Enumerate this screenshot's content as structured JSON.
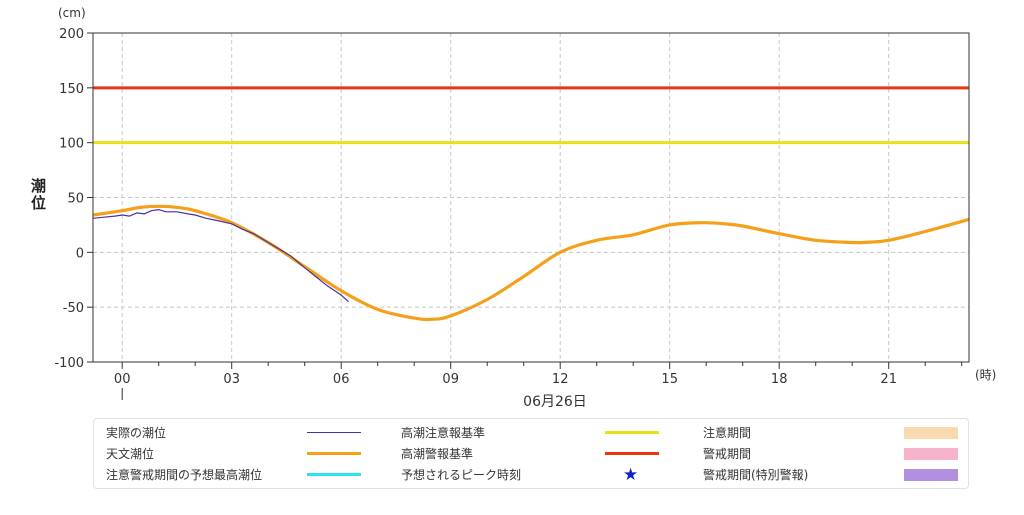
{
  "chart_data": {
    "type": "line",
    "y_unit": "(cm)",
    "x_unit": "(時)",
    "ylabel": "潮位",
    "xlabel": "06月26日",
    "ylim": [
      -100,
      200
    ],
    "yticks": [
      -100,
      -50,
      0,
      50,
      100,
      150,
      200
    ],
    "xlim": [
      -0.8,
      23.2
    ],
    "xticks": [
      0,
      3,
      6,
      9,
      12,
      15,
      18,
      21
    ],
    "xtick_labels": [
      "00",
      "03",
      "06",
      "09",
      "12",
      "15",
      "18",
      "21"
    ],
    "grid": true,
    "series": [
      {
        "name": "天文潮位",
        "color": "#f5a01a",
        "x": [
          -0.8,
          0,
          0.5,
          1.0,
          1.5,
          2.0,
          3.0,
          4.0,
          5.0,
          6.0,
          7.0,
          8.0,
          8.5,
          9.0,
          10.0,
          11.0,
          12.0,
          13.0,
          14.0,
          15.0,
          15.9,
          16.5,
          17.0,
          18.0,
          19.0,
          20.0,
          20.3,
          21.0,
          22.0,
          23.2
        ],
        "values": [
          34,
          38,
          41,
          42,
          41,
          38,
          27,
          9,
          -13,
          -35,
          -52,
          -60,
          -61,
          -58,
          -43,
          -22,
          0,
          11,
          16,
          25,
          27,
          26,
          24,
          17,
          11,
          9,
          9,
          11,
          19,
          30
        ]
      },
      {
        "name": "実際の潮位",
        "color": "#4b2fa3",
        "x": [
          -0.8,
          -0.5,
          -0.2,
          0,
          0.2,
          0.4,
          0.6,
          0.8,
          1.0,
          1.2,
          1.5,
          1.8,
          2.0,
          2.3,
          2.6,
          3.0,
          3.3,
          3.6,
          4.0,
          4.3,
          4.6,
          5.0,
          5.3,
          5.6,
          6.0,
          6.2
        ],
        "values": [
          31,
          32,
          33,
          34,
          33,
          36,
          35,
          38,
          39,
          37,
          37,
          35,
          34,
          31,
          29,
          26,
          21,
          17,
          9,
          3,
          -3,
          -14,
          -22,
          -30,
          -39,
          -45
        ]
      }
    ],
    "reference_lines": [
      {
        "name": "高潮警報基準",
        "value": 150,
        "color": "#ee3311"
      },
      {
        "name": "高潮注意報基準",
        "value": 100,
        "color": "#e8e012"
      }
    ]
  },
  "legend": {
    "items": [
      {
        "label": "実際の潮位",
        "key": "line",
        "color": "#4b2fa3",
        "thickness": 1
      },
      {
        "label": "天文潮位",
        "key": "line",
        "color": "#f5a01a",
        "thickness": 3
      },
      {
        "label": "注意警戒期間の予想最高潮位",
        "key": "line",
        "color": "#2fe0f0",
        "thickness": 3
      },
      {
        "label": "高潮注意報基準",
        "key": "line",
        "color": "#e8e012",
        "thickness": 3
      },
      {
        "label": "高潮警報基準",
        "key": "line",
        "color": "#ee3311",
        "thickness": 3
      },
      {
        "label": "予想されるピーク時刻",
        "key": "star",
        "color": "#1020d0"
      },
      {
        "label": "注意期間",
        "key": "rect",
        "color": "#f9d9b0"
      },
      {
        "label": "警戒期間",
        "key": "rect",
        "color": "#f7b3cc"
      },
      {
        "label": "警戒期間(特別警報)",
        "key": "rect",
        "color": "#b38fe0"
      }
    ]
  }
}
